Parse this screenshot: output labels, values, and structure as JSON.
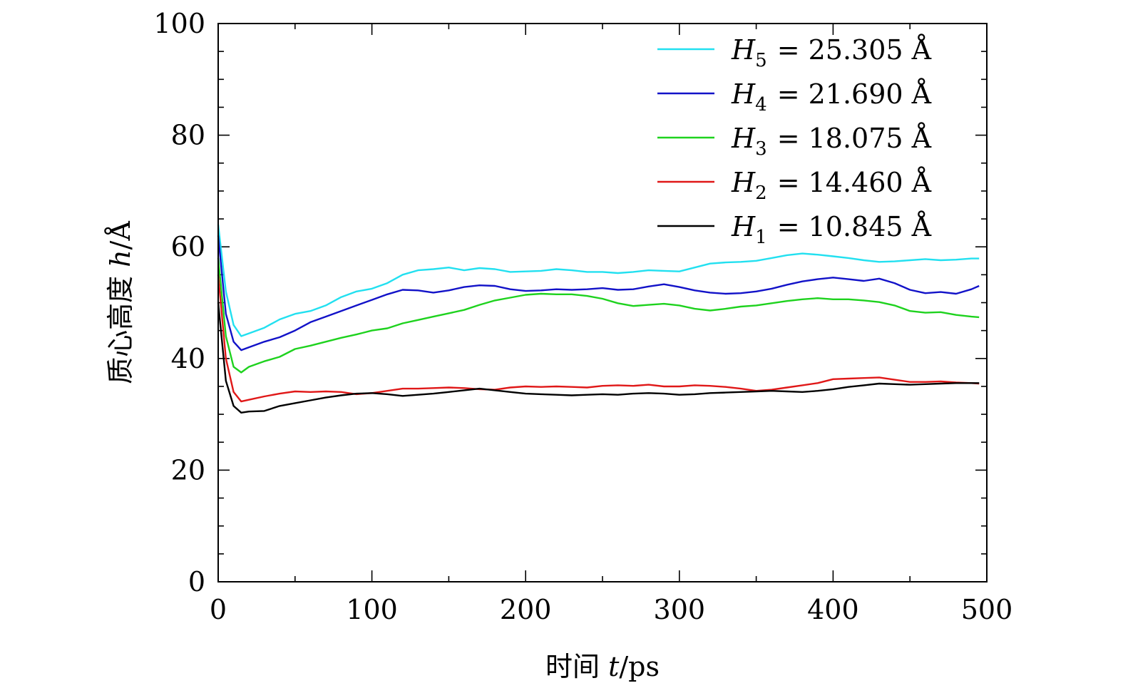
{
  "chart_data": {
    "type": "line",
    "title": "",
    "xlabel": "时间 t/ps",
    "xlabel_prefix": "时间",
    "xlabel_var": "t",
    "xlabel_unit": "/ps",
    "ylabel": "质心高度 h/Å",
    "ylabel_prefix": "质心高度",
    "ylabel_var": "h",
    "ylabel_unit": "/Å",
    "xlim": [
      0,
      500
    ],
    "ylim": [
      0,
      100
    ],
    "xticks": [
      0,
      100,
      200,
      300,
      400,
      500
    ],
    "xtick_labels": [
      "0",
      "100",
      "200",
      "300",
      "400",
      "500"
    ],
    "yticks": [
      0,
      20,
      40,
      60,
      80,
      100
    ],
    "ytick_labels": [
      "0",
      "20",
      "40",
      "60",
      "80",
      "100"
    ],
    "legend_position": "top-right",
    "series": [
      {
        "name": "H5 = 25.305 Å",
        "sym": "H",
        "sub": "5",
        "eq": "= 25.305 Å",
        "color": "#22e0f0",
        "x": [
          0,
          5,
          10,
          15,
          20,
          30,
          40,
          50,
          60,
          70,
          80,
          90,
          100,
          110,
          120,
          130,
          140,
          150,
          160,
          170,
          180,
          190,
          200,
          210,
          220,
          230,
          240,
          250,
          260,
          270,
          280,
          290,
          300,
          310,
          320,
          330,
          340,
          350,
          360,
          370,
          380,
          390,
          400,
          410,
          420,
          430,
          440,
          450,
          460,
          470,
          480,
          490,
          495
        ],
        "y": [
          64,
          52,
          46,
          44,
          44.5,
          45.5,
          47,
          48,
          48.5,
          49.5,
          51,
          52,
          52.5,
          53.5,
          55,
          55.8,
          56,
          56.3,
          55.8,
          56.2,
          56,
          55.5,
          55.6,
          55.7,
          56,
          55.8,
          55.5,
          55.5,
          55.3,
          55.5,
          55.8,
          55.7,
          55.6,
          56.3,
          57,
          57.2,
          57.3,
          57.5,
          58,
          58.5,
          58.8,
          58.6,
          58.3,
          58,
          57.6,
          57.3,
          57.4,
          57.6,
          57.8,
          57.6,
          57.7,
          57.9,
          57.9
        ]
      },
      {
        "name": "H4 = 21.690 Å",
        "sym": "H",
        "sub": "4",
        "eq": "= 21.690 Å",
        "color": "#1212c8",
        "x": [
          0,
          5,
          10,
          15,
          20,
          30,
          40,
          50,
          60,
          70,
          80,
          90,
          100,
          110,
          120,
          130,
          140,
          150,
          160,
          170,
          180,
          190,
          200,
          210,
          220,
          230,
          240,
          250,
          260,
          270,
          280,
          290,
          300,
          310,
          320,
          330,
          340,
          350,
          360,
          370,
          380,
          390,
          400,
          410,
          420,
          430,
          440,
          450,
          460,
          470,
          480,
          490,
          495
        ],
        "y": [
          62,
          48,
          43,
          41.5,
          42,
          43,
          43.8,
          45,
          46.5,
          47.5,
          48.5,
          49.5,
          50.5,
          51.5,
          52.3,
          52.2,
          51.8,
          52.2,
          52.8,
          53.1,
          53,
          52.4,
          52.1,
          52.2,
          52.4,
          52.3,
          52.4,
          52.6,
          52.3,
          52.4,
          52.9,
          53.3,
          52.8,
          52.2,
          51.8,
          51.6,
          51.7,
          52,
          52.5,
          53.2,
          53.8,
          54.2,
          54.5,
          54.2,
          53.9,
          54.3,
          53.5,
          52.3,
          51.7,
          51.9,
          51.6,
          52.4,
          53
        ]
      },
      {
        "name": "H3 = 18.075 Å",
        "sym": "H",
        "sub": "3",
        "eq": "= 18.075 Å",
        "color": "#1ed21e",
        "x": [
          0,
          5,
          10,
          15,
          20,
          30,
          40,
          50,
          60,
          70,
          80,
          90,
          100,
          110,
          120,
          130,
          140,
          150,
          160,
          170,
          180,
          190,
          200,
          210,
          220,
          230,
          240,
          250,
          260,
          270,
          280,
          290,
          300,
          310,
          320,
          330,
          340,
          350,
          360,
          370,
          380,
          390,
          400,
          410,
          420,
          430,
          440,
          450,
          460,
          470,
          480,
          490,
          495
        ],
        "y": [
          58,
          44,
          38.5,
          37.5,
          38.5,
          39.5,
          40.3,
          41.7,
          42.3,
          43,
          43.7,
          44.3,
          45,
          45.4,
          46.3,
          46.9,
          47.5,
          48.1,
          48.7,
          49.6,
          50.4,
          50.9,
          51.4,
          51.6,
          51.5,
          51.5,
          51.2,
          50.7,
          49.9,
          49.4,
          49.6,
          49.8,
          49.5,
          48.9,
          48.6,
          48.9,
          49.3,
          49.5,
          49.9,
          50.3,
          50.6,
          50.8,
          50.6,
          50.6,
          50.4,
          50.1,
          49.5,
          48.5,
          48.2,
          48.3,
          47.8,
          47.5,
          47.4
        ]
      },
      {
        "name": "H2 = 14.460 Å",
        "sym": "H",
        "sub": "2",
        "eq": "= 14.460 Å",
        "color": "#e01818",
        "x": [
          0,
          5,
          10,
          15,
          20,
          30,
          40,
          50,
          60,
          70,
          80,
          90,
          100,
          110,
          120,
          130,
          140,
          150,
          160,
          170,
          180,
          190,
          200,
          210,
          220,
          230,
          240,
          250,
          260,
          270,
          280,
          290,
          300,
          310,
          320,
          330,
          340,
          350,
          360,
          370,
          380,
          390,
          400,
          410,
          420,
          430,
          440,
          450,
          460,
          470,
          480,
          490,
          495
        ],
        "y": [
          55,
          40,
          34,
          32.3,
          32.6,
          33.2,
          33.7,
          34.1,
          34,
          34.1,
          34,
          33.6,
          33.8,
          34.2,
          34.6,
          34.6,
          34.7,
          34.8,
          34.7,
          34.5,
          34.4,
          34.8,
          35,
          34.9,
          35,
          34.9,
          34.8,
          35.1,
          35.2,
          35.1,
          35.3,
          35,
          35,
          35.2,
          35.1,
          34.9,
          34.6,
          34.2,
          34.4,
          34.8,
          35.2,
          35.6,
          36.3,
          36.4,
          36.5,
          36.6,
          36.2,
          35.8,
          35.8,
          35.9,
          35.7,
          35.6,
          35.5
        ]
      },
      {
        "name": "H1 = 10.845 Å",
        "sym": "H",
        "sub": "1",
        "eq": "= 10.845 Å",
        "color": "#000000",
        "x": [
          0,
          5,
          10,
          15,
          20,
          30,
          40,
          50,
          60,
          70,
          80,
          90,
          100,
          110,
          120,
          130,
          140,
          150,
          160,
          170,
          180,
          190,
          200,
          210,
          220,
          230,
          240,
          250,
          260,
          270,
          280,
          290,
          300,
          310,
          320,
          330,
          340,
          350,
          360,
          370,
          380,
          390,
          400,
          410,
          420,
          430,
          440,
          450,
          460,
          470,
          480,
          490,
          495
        ],
        "y": [
          50,
          36,
          31.5,
          30.3,
          30.5,
          30.6,
          31.5,
          32,
          32.5,
          33,
          33.4,
          33.7,
          33.8,
          33.6,
          33.3,
          33.5,
          33.7,
          34,
          34.3,
          34.6,
          34.3,
          34,
          33.7,
          33.6,
          33.5,
          33.4,
          33.5,
          33.6,
          33.5,
          33.7,
          33.8,
          33.7,
          33.5,
          33.6,
          33.8,
          33.9,
          34,
          34.1,
          34.2,
          34.1,
          34,
          34.2,
          34.5,
          34.9,
          35.2,
          35.5,
          35.4,
          35.3,
          35.4,
          35.5,
          35.6,
          35.6,
          35.6
        ]
      }
    ]
  }
}
